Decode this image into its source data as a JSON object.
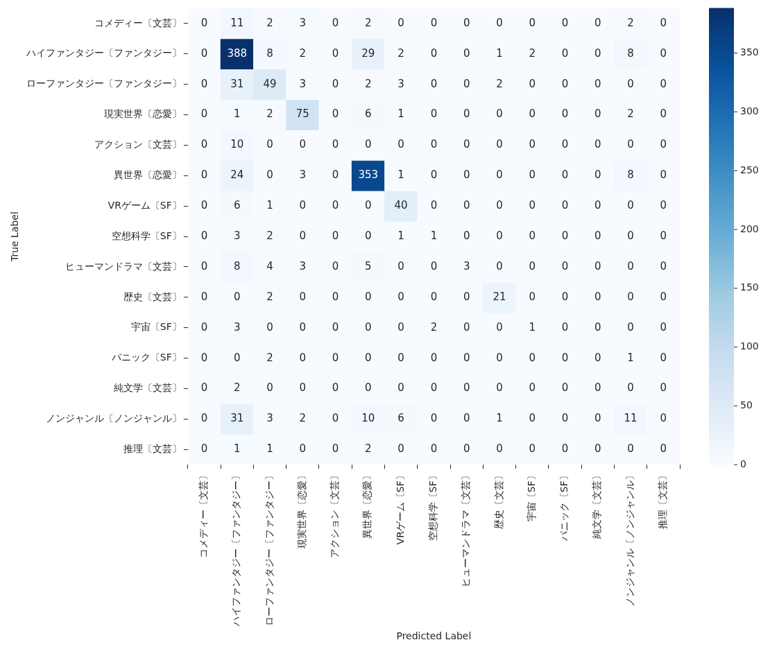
{
  "chart_data": {
    "type": "heatmap",
    "xlabel": "Predicted Label",
    "ylabel": "True Label",
    "categories": [
      "コメディー〔文芸〕",
      "ハイファンタジー〔ファンタジー〕",
      "ローファンタジー〔ファンタジー〕",
      "現実世界〔恋愛〕",
      "アクション〔文芸〕",
      "異世界〔恋愛〕",
      "VRゲーム〔SF〕",
      "空想科学〔SF〕",
      "ヒューマンドラマ〔文芸〕",
      "歴史〔文芸〕",
      "宇宙〔SF〕",
      "パニック〔SF〕",
      "純文学〔文芸〕",
      "ノンジャンル〔ノンジャンル〕",
      "推理〔文芸〕"
    ],
    "y_categories": [
      "コメディー〔文芸〕",
      "ハイファンタジー〔ファンタジー〕",
      "ローファンタジー〔ファンタジー〕",
      "現実世界〔恋愛〕",
      "アクション〔文芸〕",
      "異世界〔恋愛〕",
      "VRゲーム〔SF〕",
      "空想科学〔SF〕",
      "ヒューマンドラマ〔文芸〕",
      "歴史〔文芸〕",
      "宇宙〔SF〕",
      "パニック〔SF〕",
      "純文学〔文芸〕",
      "ノンジャンル〔ノンジャンル〕",
      "推理〔文芸〕"
    ],
    "cells": [
      [
        0,
        11,
        2,
        3,
        0,
        2,
        0,
        0,
        0,
        0,
        0,
        0,
        0,
        2,
        0
      ],
      [
        0,
        388,
        8,
        2,
        0,
        29,
        2,
        0,
        0,
        1,
        2,
        0,
        0,
        8,
        0
      ],
      [
        0,
        31,
        49,
        3,
        0,
        2,
        3,
        0,
        0,
        2,
        0,
        0,
        0,
        0,
        0
      ],
      [
        0,
        1,
        2,
        75,
        0,
        6,
        1,
        0,
        0,
        0,
        0,
        0,
        0,
        2,
        0
      ],
      [
        0,
        10,
        0,
        0,
        0,
        0,
        0,
        0,
        0,
        0,
        0,
        0,
        0,
        0,
        0
      ],
      [
        0,
        24,
        0,
        3,
        0,
        353,
        1,
        0,
        0,
        0,
        0,
        0,
        0,
        8,
        0
      ],
      [
        0,
        6,
        1,
        0,
        0,
        0,
        40,
        0,
        0,
        0,
        0,
        0,
        0,
        0,
        0
      ],
      [
        0,
        3,
        2,
        0,
        0,
        0,
        1,
        1,
        0,
        0,
        0,
        0,
        0,
        0,
        0
      ],
      [
        0,
        8,
        4,
        3,
        0,
        5,
        0,
        0,
        3,
        0,
        0,
        0,
        0,
        0,
        0
      ],
      [
        0,
        0,
        2,
        0,
        0,
        0,
        0,
        0,
        0,
        21,
        0,
        0,
        0,
        0,
        0
      ],
      [
        0,
        3,
        0,
        0,
        0,
        0,
        0,
        2,
        0,
        0,
        1,
        0,
        0,
        0,
        0
      ],
      [
        0,
        0,
        2,
        0,
        0,
        0,
        0,
        0,
        0,
        0,
        0,
        0,
        0,
        1,
        0
      ],
      [
        0,
        2,
        0,
        0,
        0,
        0,
        0,
        0,
        0,
        0,
        0,
        0,
        0,
        0,
        0
      ],
      [
        0,
        31,
        3,
        2,
        0,
        10,
        6,
        0,
        0,
        1,
        0,
        0,
        0,
        11,
        0
      ],
      [
        0,
        1,
        1,
        0,
        0,
        2,
        0,
        0,
        0,
        0,
        0,
        0,
        0,
        0,
        0
      ]
    ],
    "clim": [
      0,
      388
    ],
    "cticks": [
      0,
      50,
      100,
      150,
      200,
      250,
      300,
      350
    ],
    "data_labels": true
  }
}
